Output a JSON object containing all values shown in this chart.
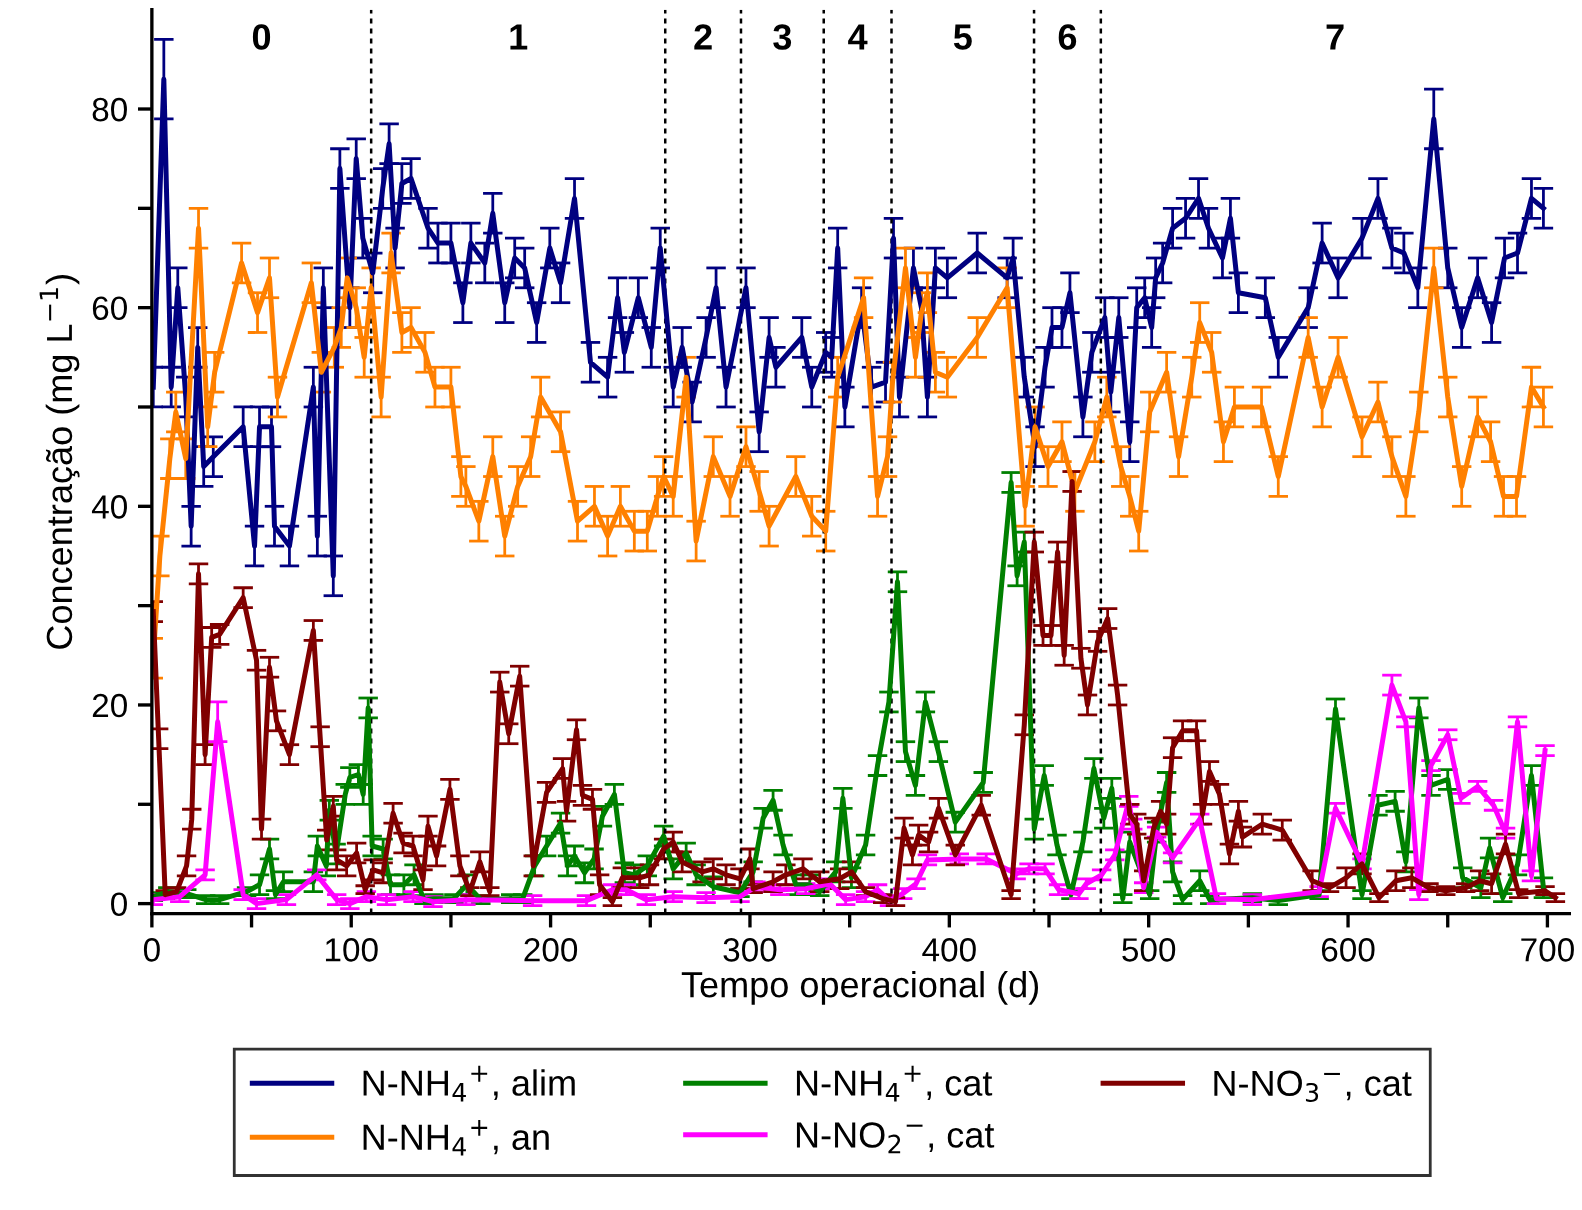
{
  "chart_data": {
    "type": "line",
    "xlabel": "Tempo operacional (d)",
    "ylabel": "Concentração (mg L$^{−1}$)",
    "xlim": [
      0,
      711
    ],
    "ylim": [
      -1,
      90
    ],
    "xticks": [
      0,
      {
        "value": 50,
        "label": null
      },
      100,
      {
        "value": 150,
        "label": null
      },
      200,
      {
        "value": 250,
        "label": null
      },
      300,
      {
        "value": 350,
        "label": null
      },
      400,
      {
        "value": 450,
        "label": null
      },
      500,
      {
        "value": 550,
        "label": null
      },
      600,
      {
        "value": 650,
        "label": null
      },
      700
    ],
    "yticks": [
      0,
      {
        "value": 10,
        "label": null
      },
      20,
      {
        "value": 30,
        "label": null
      },
      40,
      {
        "value": 50,
        "label": null
      },
      60,
      {
        "value": 70,
        "label": null
      },
      80
    ],
    "legend": "bottom",
    "line_style": "solid",
    "ref_lines": [
      {
        "axis": "x",
        "value": 110,
        "line_style": "dashed",
        "color": "#000000"
      },
      {
        "axis": "x",
        "value": 257.5,
        "line_style": "dashed",
        "color": "#000000"
      },
      {
        "axis": "x",
        "value": 295.5,
        "line_style": "dashed",
        "color": "#000000"
      },
      {
        "axis": "x",
        "value": 337,
        "line_style": "dashed",
        "color": "#000000"
      },
      {
        "axis": "x",
        "value": 371,
        "line_style": "dashed",
        "color": "#000000"
      },
      {
        "axis": "x",
        "value": 442.5,
        "line_style": "dashed",
        "color": "#000000"
      },
      {
        "axis": "x",
        "value": 476,
        "line_style": "dashed",
        "color": "#000000"
      }
    ],
    "annotations": [
      "0",
      "1",
      "2",
      "3",
      "4",
      "5",
      "6",
      "7"
    ],
    "series": [
      {
        "name": "N-NH$_{4}$$^{+}$, alim",
        "color": "#000080",
        "x": [
          0.7,
          6,
          9.7,
          13,
          17,
          19.7,
          23,
          26,
          30.8,
          45.8,
          51.5,
          54,
          60,
          61.5,
          69,
          81,
          83,
          86,
          91,
          94.3,
          99.3,
          102.5,
          105.8,
          110.8,
          115.8,
          119,
          122,
          125.4,
          130,
          138.5,
          143.5,
          150,
          156,
          160,
          167,
          171,
          177,
          182,
          187,
          193,
          199.6,
          205,
          212,
          220,
          228.6,
          233.6,
          237,
          244,
          250.5,
          255,
          261.5,
          266,
          271,
          278,
          283,
          288,
          298,
          304.6,
          309.6,
          313,
          326,
          331,
          338,
          341,
          344,
          347.6,
          356,
          361,
          368,
          372,
          375,
          382,
          386,
          389,
          393,
          399,
          414,
          429,
          432,
          437.6,
          443,
          448,
          451.5,
          456.5,
          460.5,
          467,
          471.5,
          478,
          481,
          485,
          490.5,
          494,
          498,
          501.5,
          503.5,
          507,
          512,
          518.5,
          525,
          530,
          537,
          541,
          545,
          558.5,
          565,
          580,
          587,
          595,
          607,
          615,
          622,
          628,
          635,
          643,
          650,
          657,
          665,
          672,
          678.5,
          685,
          692,
          698
        ],
        "values": [
          52,
          83,
          52,
          62,
          51,
          38,
          56,
          44,
          45,
          48,
          36,
          48,
          48,
          38,
          36,
          52,
          37,
          62,
          33,
          74,
          60,
          75,
          67,
          63.5,
          72,
          76.5,
          66,
          72.5,
          73,
          68,
          66.5,
          66.5,
          60.5,
          66.5,
          64.5,
          69.5,
          60.5,
          65,
          64,
          58.5,
          66,
          62.5,
          71,
          54.5,
          53,
          61,
          55.5,
          61,
          56,
          66,
          52,
          56,
          50.5,
          57,
          62,
          52,
          62,
          47.5,
          57,
          54,
          57,
          52,
          55.5,
          55,
          66,
          50,
          60,
          52,
          52.5,
          67,
          51,
          64,
          60,
          51,
          64,
          63,
          65.5,
          63,
          65,
          53,
          46,
          54,
          58,
          58,
          61.5,
          49,
          55.5,
          59,
          51.5,
          59,
          46.5,
          60,
          61,
          58,
          63,
          64.5,
          68,
          69,
          71,
          68,
          65,
          69,
          61.5,
          61,
          55,
          60,
          66.5,
          63,
          67,
          71,
          66,
          65.5,
          62,
          79,
          64,
          58,
          63,
          58.5,
          65,
          65.5,
          71,
          70
        ],
        "errors": [
          2,
          4,
          2,
          2,
          2,
          2,
          2,
          2,
          2,
          2,
          2,
          2,
          2,
          2,
          2,
          2,
          2,
          2,
          2,
          2,
          2,
          2,
          2,
          2,
          2,
          2,
          2,
          2,
          2,
          2,
          2,
          2,
          2,
          2,
          2,
          2,
          2,
          2,
          2,
          2,
          2,
          2,
          2,
          2,
          2,
          2,
          2,
          2,
          2,
          2,
          2,
          2,
          2,
          2,
          2,
          2,
          2,
          2,
          2,
          2,
          2,
          2,
          2,
          2,
          2,
          2,
          2,
          2,
          2,
          2,
          2,
          2,
          2,
          2,
          2,
          2,
          2,
          2,
          2,
          2,
          2,
          2,
          2,
          2,
          2,
          2,
          2,
          2,
          2,
          2,
          2,
          2,
          2,
          2,
          2,
          2,
          2,
          2,
          2,
          2,
          2,
          2,
          2,
          2,
          2,
          2,
          2,
          2,
          2,
          2,
          2,
          2,
          2,
          3,
          2,
          2,
          2,
          2,
          2,
          2,
          2,
          2
        ]
      },
      {
        "name": "N-NH$_{4}$$^{+}$, an",
        "color": "#ff8000",
        "x": [
          0.7,
          4,
          9,
          12,
          17,
          23.4,
          28,
          31.5,
          45,
          53,
          59,
          63,
          80,
          85,
          91.5,
          95,
          98,
          102.5,
          106.5,
          110,
          115,
          120,
          125.4,
          130,
          137,
          142,
          150,
          155,
          157.5,
          164,
          171,
          177,
          183.5,
          190,
          195,
          205,
          213.5,
          222,
          228.6,
          235,
          242,
          248.5,
          253.6,
          256.7,
          261.5,
          268,
          273,
          281.6,
          290,
          298,
          304.6,
          309.6,
          323,
          331,
          338,
          344,
          357,
          364,
          369,
          371.5,
          378,
          383,
          386,
          389,
          393,
          399,
          414,
          429,
          438,
          443,
          449.5,
          456.5,
          463,
          473,
          479,
          486,
          490.5,
          495,
          500.5,
          509,
          515,
          521.6,
          525.6,
          531.6,
          537.5,
          543,
          556.6,
          565,
          580,
          587,
          595,
          607,
          615,
          622,
          629,
          635.5,
          643,
          650,
          657,
          665,
          671.5,
          678,
          684.5,
          692,
          698
        ],
        "values": [
          24.7,
          35,
          44.8,
          49.5,
          44.8,
          68,
          48,
          53.5,
          64.5,
          59.5,
          63,
          51,
          62.5,
          53.5,
          56,
          58,
          63,
          60,
          55,
          62,
          51,
          65.5,
          57.5,
          58,
          55.5,
          52,
          52,
          43,
          42,
          38.5,
          45,
          37,
          42,
          45,
          51,
          47.5,
          38.5,
          40,
          37,
          40,
          37.5,
          37.5,
          41,
          43,
          41,
          53,
          36.5,
          45,
          41,
          46,
          41.5,
          38,
          43,
          39,
          37.5,
          53,
          61,
          41,
          45,
          52.5,
          64,
          55,
          59.5,
          61.5,
          53.5,
          53,
          57,
          62,
          40,
          48,
          44,
          46.5,
          41.5,
          46.5,
          51,
          44,
          41,
          37.5,
          49.5,
          53.5,
          45,
          53,
          58.5,
          55.5,
          46.5,
          50,
          50,
          43,
          57,
          50,
          55,
          47,
          50.5,
          45,
          41,
          49.5,
          64,
          51,
          42,
          49,
          46.5,
          41,
          41,
          52,
          50
        ],
        "errors": [
          2,
          2,
          2,
          2,
          2,
          2,
          2,
          2,
          2,
          2,
          2,
          2,
          2,
          2,
          2,
          2,
          2,
          2,
          2,
          2,
          2,
          2,
          2,
          2,
          2,
          2,
          2,
          2,
          2,
          2,
          2,
          2,
          2,
          2,
          2,
          2,
          2,
          2,
          2,
          2,
          2,
          2,
          2,
          2,
          2,
          2,
          2,
          2,
          2,
          2,
          2,
          2,
          2,
          2,
          2,
          2,
          2,
          2,
          2,
          2,
          2,
          2,
          2,
          2,
          2,
          2,
          2,
          2,
          2,
          2,
          2,
          2,
          2,
          2,
          2,
          2,
          2,
          2,
          2,
          2,
          2,
          2,
          2,
          2,
          2,
          2,
          2,
          2,
          2,
          2,
          2,
          2,
          2,
          2,
          2,
          2,
          2,
          2,
          2,
          2,
          2,
          2,
          2,
          2,
          2
        ]
      },
      {
        "name": "N-NH$_{4}$$^{+}$, cat",
        "color": "#008000",
        "x": [
          0.7,
          8,
          17.5,
          27,
          34,
          47.5,
          54,
          59,
          62,
          66,
          81,
          83,
          87.5,
          89,
          92.4,
          97,
          99.3,
          103.6,
          106,
          108.5,
          110.5,
          116,
          119.7,
          126.4,
          131.5,
          136.5,
          141.5,
          151.5,
          158,
          165,
          180,
          186,
          192,
          198,
          205,
          208.5,
          212,
          217,
          221.8,
          226,
          232,
          237,
          242,
          248.5,
          256.7,
          261.5,
          268,
          273,
          281.6,
          295,
          301.6,
          306.6,
          311.6,
          316.6,
          323,
          330,
          335,
          343,
          346.6,
          350.9,
          358,
          364,
          369.7,
          374,
          378,
          383,
          388,
          394.5,
          403,
          417,
          431,
          434,
          437.6,
          442.6,
          447.6,
          454,
          461,
          467,
          472.5,
          477.5,
          481.5,
          487,
          490.5,
          500.5,
          504,
          509,
          512,
          517,
          525.6,
          530.6,
          552,
          565,
          585.5,
          593.7,
          607,
          615,
          623.6,
          629,
          635.5,
          641.6,
          650,
          657.5,
          666.6,
          671,
          677.6,
          685,
          692,
          698
        ],
        "values": [
          0.7,
          1.2,
          1,
          0.4,
          0.4,
          1.2,
          1.9,
          5.5,
          0.9,
          2.2,
          2.2,
          5.8,
          3.8,
          9.4,
          5,
          11,
          12.7,
          13,
          11,
          19.7,
          5.8,
          5.5,
          1.9,
          1.9,
          2.9,
          0.4,
          0.5,
          0.5,
          1.9,
          0.4,
          0.5,
          0.5,
          3.8,
          5.8,
          8.1,
          3.8,
          4.8,
          3.1,
          4.5,
          8.8,
          11,
          3.1,
          2.9,
          3.8,
          6.8,
          3.5,
          5.1,
          2.9,
          1.7,
          1.1,
          3.2,
          8.6,
          10.4,
          5.9,
          1.9,
          1.9,
          1.2,
          3.2,
          10.6,
          2.6,
          5.9,
          13.9,
          20.3,
          32.4,
          15.3,
          11.9,
          20.3,
          15.3,
          8.2,
          12.2,
          42.4,
          33,
          36.4,
          7.5,
          12.9,
          5.9,
          0.9,
          6.2,
          13.6,
          8.6,
          11.6,
          0.5,
          6.2,
          0.9,
          7.2,
          12.2,
          3.2,
          0.4,
          2.3,
          0.4,
          0.6,
          0.3,
          0.9,
          19.6,
          0.9,
          9.9,
          10.3,
          4.2,
          19.7,
          11.9,
          12.5,
          2.6,
          1.6,
          5.6,
          0.6,
          3.9,
          12.9,
          1.6
        ],
        "errors": [
          0.4,
          0.4,
          0.4,
          0.4,
          0.4,
          0.4,
          1,
          1,
          0.4,
          1,
          1,
          1,
          1,
          1,
          1,
          1,
          1,
          1,
          1,
          1,
          1,
          1,
          1,
          1,
          1,
          0.4,
          0.4,
          0.4,
          1,
          0.4,
          0.4,
          0.4,
          1,
          1,
          1,
          1,
          1,
          1,
          1,
          1,
          1,
          1,
          1,
          1,
          1,
          1,
          1,
          1,
          1,
          0.4,
          1,
          1,
          1,
          1,
          1,
          1,
          0.4,
          1,
          1,
          1,
          1,
          1,
          1,
          1,
          1,
          1,
          1,
          1,
          1,
          1,
          1,
          1,
          1,
          1,
          1,
          1,
          0.4,
          1,
          1,
          1,
          1,
          0.4,
          1,
          0.4,
          1,
          1,
          1,
          0.4,
          1,
          0.4,
          0.4,
          0.4,
          0.4,
          1,
          0.4,
          1,
          1,
          1,
          1,
          1,
          1,
          1,
          1,
          1,
          0.4,
          1,
          1,
          1
        ]
      },
      {
        "name": "N-NO$_{2}$$^{−}$, cat",
        "color": "#ff00ff",
        "x": [
          0.7,
          14,
          26.7,
          33,
          45.8,
          52.5,
          67.5,
          82.7,
          92.7,
          99.3,
          107.6,
          117.7,
          131,
          141,
          157.5,
          191,
          218,
          231,
          238,
          248,
          261.5,
          278,
          295,
          303,
          315,
          328,
          340,
          348,
          358,
          364,
          370,
          376.6,
          383.3,
          389,
          405,
          418.5,
          433.5,
          440,
          448,
          454.8,
          465,
          468.7,
          476.4,
          483,
          490,
          492,
          497.5,
          504,
          512,
          525.6,
          534,
          552,
          585.5,
          593.7,
          607,
          622,
          629,
          635.5,
          641.6,
          650,
          656.6,
          665,
          673,
          679,
          685,
          692,
          698.8
        ],
        "values": [
          0.4,
          0.7,
          2.9,
          18.3,
          0.9,
          0,
          0.4,
          2.9,
          0.4,
          0,
          0.7,
          0.4,
          0.7,
          0.2,
          0.4,
          0.3,
          0.3,
          1.4,
          1.4,
          0.4,
          0.7,
          0.6,
          0.7,
          1.7,
          1.4,
          1.5,
          2,
          0.4,
          0.7,
          1.4,
          0.3,
          1,
          2,
          4.4,
          4.5,
          4.5,
          3,
          3.5,
          3.5,
          1.4,
          1,
          2,
          2.9,
          4.9,
          10.3,
          8,
          1.6,
          7.2,
          4.6,
          8.5,
          0.5,
          0.4,
          1.2,
          9.6,
          4,
          22,
          18.3,
          0.9,
          13.9,
          17,
          10.6,
          11.8,
          9.9,
          7.1,
          18.3,
          2.8,
          15.4
        ],
        "errors": [
          0.5,
          0.5,
          0.5,
          2,
          0.5,
          0.5,
          0.5,
          0.5,
          0.5,
          0.5,
          0.5,
          0.5,
          0.5,
          0.5,
          0.5,
          0.5,
          0.5,
          0.5,
          0.5,
          0.5,
          0.5,
          0.5,
          0.5,
          0.5,
          0.5,
          0.5,
          0.5,
          0.5,
          0.5,
          0.5,
          0.5,
          0.5,
          0.5,
          0.5,
          0.5,
          0.5,
          0.5,
          0.5,
          0.5,
          0.5,
          0.5,
          0.5,
          0.5,
          0.5,
          0.5,
          0.5,
          0.5,
          0.5,
          0.5,
          0.5,
          0.5,
          0.5,
          0.5,
          0.5,
          0.5,
          1,
          0.5,
          0.5,
          0.5,
          0.5,
          0.5,
          0.5,
          0.5,
          0.5,
          0.5,
          0.5,
          0.5
        ]
      },
      {
        "name": "N-NO$_{3}$$^{−}$, cat",
        "color": "#800000",
        "x": [
          0.7,
          3.4,
          6.7,
          12.4,
          17.4,
          20,
          23.4,
          26.7,
          30,
          34,
          45.8,
          52.5,
          55,
          59,
          62.5,
          69,
          81,
          84.4,
          87.7,
          91,
          92.7,
          97.7,
          102.7,
          107,
          111,
          116,
          121,
          126,
          131,
          136,
          138.5,
          142.8,
          149.5,
          154.5,
          159.5,
          164.5,
          169.5,
          174.5,
          179,
          184.5,
          191.3,
          198,
          206,
          208,
          213,
          216,
          221,
          224.6,
          231,
          236,
          244.7,
          249.6,
          256.7,
          261.5,
          266,
          276,
          281.6,
          288,
          295,
          300,
          301.6,
          311.6,
          318,
          326.6,
          335,
          345,
          351,
          358,
          366.6,
          373,
          377.3,
          381.5,
          384.6,
          389.6,
          394.6,
          403,
          416,
          431,
          437.6,
          442.6,
          447,
          451,
          454.3,
          457.6,
          461.6,
          466,
          469.3,
          474.4,
          479.4,
          484.4,
          490.5,
          494,
          497.5,
          502.5,
          506,
          509,
          512,
          517,
          524,
          527,
          530.5,
          535.5,
          540.5,
          545,
          547,
          557,
          567,
          582,
          590.7,
          599,
          607,
          615.5,
          624,
          632,
          640.6,
          649,
          659,
          666,
          672,
          679,
          685.6,
          698.8,
          704
        ],
        "values": [
          29.4,
          16.6,
          0.9,
          1.2,
          3.8,
          8.5,
          33.2,
          15,
          26.8,
          27.1,
          30.8,
          24.5,
          7.5,
          23.8,
          18.4,
          15,
          27.5,
          16.8,
          6.4,
          9.8,
          4.4,
          3.8,
          5.1,
          1.4,
          3.4,
          3.1,
          9.1,
          6.1,
          5.8,
          2.4,
          7.8,
          4.8,
          11.5,
          3.8,
          1.2,
          4.2,
          1.2,
          22.3,
          17.1,
          22.9,
          3.8,
          11.2,
          13.6,
          9.3,
          17.5,
          10.9,
          10.5,
          1.9,
          0.2,
          2.6,
          2.6,
          2.9,
          5.5,
          6.2,
          4.2,
          3.2,
          3.5,
          2.9,
          2.5,
          4.5,
          1.5,
          2.2,
          2.9,
          3.5,
          2.2,
          2.5,
          3.2,
          1.2,
          0.5,
          0.2,
          7.6,
          4.9,
          6.9,
          6.2,
          9.6,
          4.9,
          9.9,
          0.9,
          18,
          36.4,
          27,
          27,
          35.4,
          25,
          42.5,
          24.7,
          20,
          26.4,
          28.7,
          21,
          9,
          8,
          2.3,
          7.6,
          9.3,
          8,
          15.7,
          17.4,
          17.4,
          9,
          13.3,
          11,
          5,
          9.3,
          6.7,
          8,
          7.4,
          2.3,
          1.6,
          2.6,
          4,
          0.6,
          2.3,
          2.6,
          1.6,
          1.3,
          1.6,
          2.3,
          2,
          6,
          1,
          1.3,
          0.6
        ],
        "errors": [
          1,
          1,
          0.4,
          0.4,
          1,
          1,
          1,
          1,
          1,
          1,
          1,
          1,
          1,
          1,
          1,
          1,
          1,
          1,
          1,
          1,
          1,
          1,
          1,
          0.4,
          1,
          1,
          1,
          1,
          1,
          1,
          1,
          1,
          1,
          1,
          0.4,
          1,
          0.4,
          1,
          1,
          1,
          1,
          1,
          1,
          1,
          1,
          1,
          1,
          1,
          0.4,
          1,
          1,
          1,
          1,
          1,
          1,
          1,
          1,
          1,
          1,
          1,
          0.4,
          1,
          1,
          1,
          1,
          1,
          1,
          0.4,
          0.4,
          0.4,
          1,
          1,
          1,
          1,
          1,
          1,
          1,
          0.4,
          1,
          1,
          1,
          1,
          1,
          1,
          1,
          1,
          1,
          1,
          1,
          1,
          1,
          1,
          1,
          1,
          1,
          1,
          1,
          1,
          1,
          1,
          1,
          1,
          1,
          1,
          1,
          1,
          1,
          1,
          0.4,
          1,
          1,
          0.4,
          1,
          1,
          0.4,
          0.4,
          0.4,
          1,
          1,
          1,
          0.4,
          0.4,
          0.4
        ]
      }
    ]
  }
}
